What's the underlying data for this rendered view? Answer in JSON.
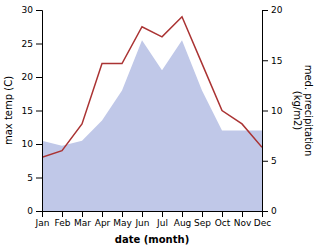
{
  "chart_data": {
    "type": "line",
    "categories": [
      "Jan",
      "Feb",
      "Mar",
      "Apr",
      "May",
      "Jun",
      "Jul",
      "Aug",
      "Sep",
      "Oct",
      "Nov",
      "Dec"
    ],
    "xlabel": "date (month)",
    "ylabel": "max temp (C)",
    "y2label": "med. precipitation\n(kg/m2)",
    "ylim": [
      0,
      30
    ],
    "yticks": [
      0,
      5,
      10,
      15,
      20,
      25,
      30
    ],
    "y2lim": [
      0,
      20
    ],
    "y2ticks": [
      0,
      5,
      10,
      15,
      20
    ],
    "grid": false,
    "series": [
      {
        "type": "area",
        "axis": "y2",
        "color": "#c0c8e8",
        "values": [
          7,
          6.5,
          7,
          9,
          12,
          17,
          14,
          17,
          12,
          8,
          8,
          8
        ]
      },
      {
        "type": "line",
        "color": "#aa3333",
        "values": [
          8,
          9,
          13,
          22,
          22,
          27.5,
          26,
          29,
          22,
          15,
          13,
          9.5
        ]
      }
    ]
  }
}
